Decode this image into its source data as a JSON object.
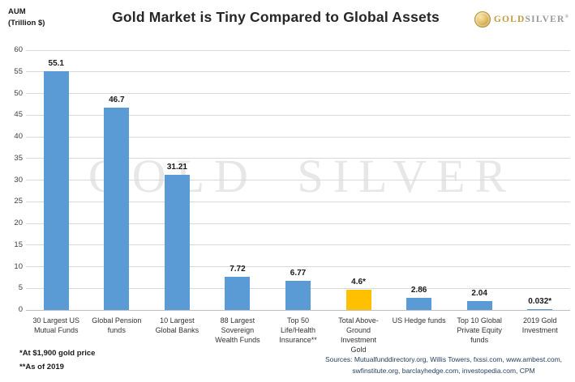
{
  "header": {
    "aum_line1": "AUM",
    "aum_line2": "(Trillion $)",
    "title": "Gold Market is Tiny Compared to Global Assets",
    "logo": {
      "gold": "GOLD",
      "silver": "SILVER",
      "reg": "®"
    }
  },
  "watermark": "GOLD SILVER",
  "chart_data": {
    "type": "bar",
    "title": "Gold Market is Tiny Compared to Global Assets",
    "xlabel": "",
    "ylabel": "AUM (Trillion $)",
    "ylim": [
      0,
      60
    ],
    "ytick_step": 5,
    "grid": true,
    "legend": "none",
    "categories": [
      [
        "30 Largest US",
        "Mutual Funds"
      ],
      [
        "Global Pension",
        "funds"
      ],
      [
        "10 Largest",
        "Global Banks"
      ],
      [
        "88 Largest",
        "Sovereign",
        "Wealth Funds"
      ],
      [
        "Top 50",
        "Life/Health",
        "Insurance**"
      ],
      [
        "Total Above-",
        "Ground",
        "Investment",
        "Gold"
      ],
      [
        "US Hedge funds"
      ],
      [
        "Top 10 Global",
        "Private Equity",
        "funds"
      ],
      [
        "2019 Gold",
        "Investment"
      ]
    ],
    "values": [
      55.1,
      46.7,
      31.21,
      7.72,
      6.77,
      4.6,
      2.86,
      2.04,
      0.032
    ],
    "value_labels": [
      "55.1",
      "46.7",
      "31.21",
      "7.72",
      "6.77",
      "4.6*",
      "2.86",
      "2.04",
      "0.032*"
    ],
    "highlight_index": 5,
    "bar_colors": [
      "#5B9BD5",
      "#5B9BD5",
      "#5B9BD5",
      "#5B9BD5",
      "#5B9BD5",
      "#FFC000",
      "#5B9BD5",
      "#5B9BD5",
      "#5B9BD5"
    ]
  },
  "footnotes": [
    "*At $1,900 gold price",
    "**As of 2019"
  ],
  "sources": {
    "line1": "Sources: Mutualfunddirectory.org, Willis Towers, fxssi.com, www.ambest.com,",
    "line2": "swfinstitute.org, barclayhedge.com, investopedia.com, CPM"
  },
  "colors": {
    "bar_blue": "#5B9BD5",
    "bar_gold": "#FFC000",
    "gridline": "#D9D9D9",
    "watermark": "#E7E7E7",
    "logo_gold": "#C19A3D",
    "logo_silver": "#9A9A9A",
    "sources_text": "#243F60"
  }
}
